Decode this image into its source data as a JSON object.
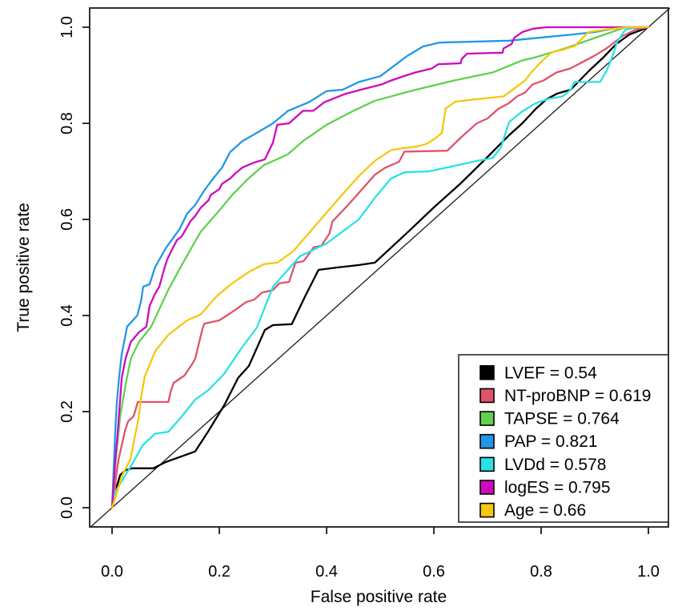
{
  "chart_data": {
    "type": "line",
    "subtype": "roc-curves",
    "xlabel": "False positive rate",
    "ylabel": "True positive rate",
    "xlim": [
      0,
      1
    ],
    "ylim": [
      0,
      1
    ],
    "axis_padding_frac": 0.04,
    "x_ticks": [
      "0.0",
      "0.2",
      "0.4",
      "0.6",
      "0.8",
      "1.0"
    ],
    "y_ticks": [
      "0.0",
      "0.2",
      "0.4",
      "0.6",
      "0.8",
      "1.0"
    ],
    "grid": false,
    "diagonal_reference_line": true,
    "legend_position": "bottom-right",
    "background_color": "#ffffff",
    "axis_color": "#1a1a1a",
    "series": [
      {
        "name": "LVEF",
        "auc": 0.54,
        "label": "LVEF = 0.54",
        "color": "#000000",
        "points": [
          [
            0,
            0
          ],
          [
            0.007,
            0.037
          ],
          [
            0.015,
            0.068
          ],
          [
            0.025,
            0.078
          ],
          [
            0.037,
            0.082
          ],
          [
            0.077,
            0.082
          ],
          [
            0.1,
            0.095
          ],
          [
            0.155,
            0.117
          ],
          [
            0.18,
            0.16
          ],
          [
            0.21,
            0.215
          ],
          [
            0.235,
            0.27
          ],
          [
            0.255,
            0.295
          ],
          [
            0.285,
            0.37
          ],
          [
            0.3,
            0.38
          ],
          [
            0.335,
            0.382
          ],
          [
            0.36,
            0.44
          ],
          [
            0.385,
            0.495
          ],
          [
            0.42,
            0.5
          ],
          [
            0.46,
            0.505
          ],
          [
            0.49,
            0.51
          ],
          [
            0.55,
            0.572
          ],
          [
            0.6,
            0.625
          ],
          [
            0.65,
            0.675
          ],
          [
            0.7,
            0.73
          ],
          [
            0.74,
            0.775
          ],
          [
            0.765,
            0.8
          ],
          [
            0.79,
            0.83
          ],
          [
            0.81,
            0.85
          ],
          [
            0.83,
            0.862
          ],
          [
            0.855,
            0.87
          ],
          [
            0.89,
            0.91
          ],
          [
            0.915,
            0.936
          ],
          [
            0.94,
            0.965
          ],
          [
            0.965,
            0.985
          ],
          [
            1,
            1
          ]
        ]
      },
      {
        "name": "NT-proBNP",
        "auc": 0.619,
        "label": "NT-proBNP = 0.619",
        "color": "#DF536B",
        "points": [
          [
            0,
            0
          ],
          [
            0.004,
            0.02
          ],
          [
            0.007,
            0.06
          ],
          [
            0.012,
            0.1
          ],
          [
            0.018,
            0.13
          ],
          [
            0.024,
            0.16
          ],
          [
            0.03,
            0.18
          ],
          [
            0.04,
            0.19
          ],
          [
            0.048,
            0.22
          ],
          [
            0.105,
            0.22
          ],
          [
            0.11,
            0.245
          ],
          [
            0.115,
            0.26
          ],
          [
            0.135,
            0.275
          ],
          [
            0.15,
            0.3
          ],
          [
            0.155,
            0.31
          ],
          [
            0.168,
            0.37
          ],
          [
            0.172,
            0.383
          ],
          [
            0.2,
            0.39
          ],
          [
            0.214,
            0.4
          ],
          [
            0.23,
            0.412
          ],
          [
            0.25,
            0.428
          ],
          [
            0.265,
            0.433
          ],
          [
            0.28,
            0.448
          ],
          [
            0.3,
            0.453
          ],
          [
            0.312,
            0.467
          ],
          [
            0.33,
            0.47
          ],
          [
            0.342,
            0.51
          ],
          [
            0.357,
            0.513
          ],
          [
            0.367,
            0.528
          ],
          [
            0.376,
            0.542
          ],
          [
            0.39,
            0.545
          ],
          [
            0.405,
            0.57
          ],
          [
            0.411,
            0.596
          ],
          [
            0.44,
            0.63
          ],
          [
            0.46,
            0.655
          ],
          [
            0.49,
            0.693
          ],
          [
            0.51,
            0.708
          ],
          [
            0.535,
            0.72
          ],
          [
            0.545,
            0.741
          ],
          [
            0.625,
            0.743
          ],
          [
            0.65,
            0.77
          ],
          [
            0.68,
            0.8
          ],
          [
            0.7,
            0.81
          ],
          [
            0.72,
            0.83
          ],
          [
            0.74,
            0.842
          ],
          [
            0.755,
            0.856
          ],
          [
            0.77,
            0.864
          ],
          [
            0.784,
            0.881
          ],
          [
            0.804,
            0.889
          ],
          [
            0.829,
            0.906
          ],
          [
            0.854,
            0.914
          ],
          [
            0.878,
            0.928
          ],
          [
            0.903,
            0.943
          ],
          [
            0.922,
            0.956
          ],
          [
            0.951,
            0.981
          ],
          [
            0.976,
            0.995
          ],
          [
            1,
            1
          ]
        ]
      },
      {
        "name": "TAPSE",
        "auc": 0.764,
        "label": "TAPSE = 0.764",
        "color": "#61D04F",
        "points": [
          [
            0,
            0
          ],
          [
            0.007,
            0.1
          ],
          [
            0.015,
            0.19
          ],
          [
            0.025,
            0.255
          ],
          [
            0.035,
            0.31
          ],
          [
            0.05,
            0.345
          ],
          [
            0.073,
            0.377
          ],
          [
            0.106,
            0.456
          ],
          [
            0.136,
            0.517
          ],
          [
            0.165,
            0.574
          ],
          [
            0.195,
            0.612
          ],
          [
            0.224,
            0.651
          ],
          [
            0.254,
            0.685
          ],
          [
            0.283,
            0.713
          ],
          [
            0.327,
            0.735
          ],
          [
            0.356,
            0.763
          ],
          [
            0.4,
            0.797
          ],
          [
            0.45,
            0.826
          ],
          [
            0.49,
            0.847
          ],
          [
            0.563,
            0.869
          ],
          [
            0.637,
            0.889
          ],
          [
            0.71,
            0.906
          ],
          [
            0.765,
            0.931
          ],
          [
            0.785,
            0.936
          ],
          [
            0.833,
            0.952
          ],
          [
            0.863,
            0.963
          ],
          [
            0.893,
            0.975
          ],
          [
            0.932,
            0.99
          ],
          [
            0.957,
            1
          ],
          [
            1,
            1
          ]
        ]
      },
      {
        "name": "PAP",
        "auc": 0.821,
        "label": "PAP = 0.821",
        "color": "#2297E6",
        "points": [
          [
            0,
            0
          ],
          [
            0.003,
            0.08
          ],
          [
            0.006,
            0.16
          ],
          [
            0.009,
            0.22
          ],
          [
            0.013,
            0.27
          ],
          [
            0.018,
            0.32
          ],
          [
            0.028,
            0.377
          ],
          [
            0.047,
            0.4
          ],
          [
            0.054,
            0.43
          ],
          [
            0.058,
            0.46
          ],
          [
            0.07,
            0.465
          ],
          [
            0.08,
            0.5
          ],
          [
            0.1,
            0.54
          ],
          [
            0.111,
            0.557
          ],
          [
            0.126,
            0.58
          ],
          [
            0.14,
            0.612
          ],
          [
            0.155,
            0.63
          ],
          [
            0.17,
            0.657
          ],
          [
            0.185,
            0.68
          ],
          [
            0.205,
            0.708
          ],
          [
            0.22,
            0.74
          ],
          [
            0.243,
            0.763
          ],
          [
            0.265,
            0.777
          ],
          [
            0.285,
            0.79
          ],
          [
            0.3,
            0.8
          ],
          [
            0.328,
            0.826
          ],
          [
            0.367,
            0.844
          ],
          [
            0.4,
            0.867
          ],
          [
            0.43,
            0.87
          ],
          [
            0.46,
            0.886
          ],
          [
            0.5,
            0.898
          ],
          [
            0.55,
            0.94
          ],
          [
            0.58,
            0.96
          ],
          [
            0.61,
            0.968
          ],
          [
            0.74,
            0.972
          ],
          [
            0.86,
            0.985
          ],
          [
            0.9,
            0.99
          ],
          [
            0.95,
            1
          ],
          [
            1,
            1
          ]
        ]
      },
      {
        "name": "LVDd",
        "auc": 0.578,
        "label": "LVDd = 0.578",
        "color": "#28E2E5",
        "points": [
          [
            0,
            0
          ],
          [
            0.005,
            0.03
          ],
          [
            0.015,
            0.05
          ],
          [
            0.037,
            0.09
          ],
          [
            0.057,
            0.13
          ],
          [
            0.08,
            0.154
          ],
          [
            0.105,
            0.158
          ],
          [
            0.13,
            0.19
          ],
          [
            0.155,
            0.225
          ],
          [
            0.18,
            0.245
          ],
          [
            0.21,
            0.28
          ],
          [
            0.24,
            0.33
          ],
          [
            0.27,
            0.375
          ],
          [
            0.3,
            0.46
          ],
          [
            0.35,
            0.523
          ],
          [
            0.4,
            0.55
          ],
          [
            0.46,
            0.6
          ],
          [
            0.49,
            0.645
          ],
          [
            0.52,
            0.685
          ],
          [
            0.545,
            0.698
          ],
          [
            0.59,
            0.7
          ],
          [
            0.633,
            0.71
          ],
          [
            0.677,
            0.721
          ],
          [
            0.71,
            0.728
          ],
          [
            0.725,
            0.75
          ],
          [
            0.74,
            0.802
          ],
          [
            0.765,
            0.825
          ],
          [
            0.79,
            0.842
          ],
          [
            0.814,
            0.851
          ],
          [
            0.84,
            0.856
          ],
          [
            0.855,
            0.87
          ],
          [
            0.862,
            0.886
          ],
          [
            0.91,
            0.886
          ],
          [
            0.922,
            0.909
          ],
          [
            0.932,
            0.936
          ],
          [
            0.942,
            0.97
          ],
          [
            0.957,
            0.995
          ],
          [
            0.98,
            1
          ],
          [
            1,
            1
          ]
        ]
      },
      {
        "name": "logES",
        "auc": 0.795,
        "label": "logES = 0.795",
        "color": "#CD0BBC",
        "points": [
          [
            0,
            0
          ],
          [
            0.003,
            0.05
          ],
          [
            0.006,
            0.1
          ],
          [
            0.01,
            0.15
          ],
          [
            0.014,
            0.21
          ],
          [
            0.018,
            0.27
          ],
          [
            0.025,
            0.31
          ],
          [
            0.035,
            0.345
          ],
          [
            0.05,
            0.365
          ],
          [
            0.064,
            0.377
          ],
          [
            0.07,
            0.42
          ],
          [
            0.08,
            0.445
          ],
          [
            0.088,
            0.46
          ],
          [
            0.098,
            0.5
          ],
          [
            0.103,
            0.517
          ],
          [
            0.114,
            0.542
          ],
          [
            0.121,
            0.557
          ],
          [
            0.13,
            0.565
          ],
          [
            0.14,
            0.584
          ],
          [
            0.146,
            0.596
          ],
          [
            0.155,
            0.607
          ],
          [
            0.165,
            0.624
          ],
          [
            0.18,
            0.64
          ],
          [
            0.184,
            0.651
          ],
          [
            0.2,
            0.663
          ],
          [
            0.205,
            0.674
          ],
          [
            0.22,
            0.685
          ],
          [
            0.23,
            0.696
          ],
          [
            0.243,
            0.708
          ],
          [
            0.264,
            0.718
          ],
          [
            0.285,
            0.725
          ],
          [
            0.3,
            0.76
          ],
          [
            0.308,
            0.797
          ],
          [
            0.33,
            0.8
          ],
          [
            0.356,
            0.826
          ],
          [
            0.375,
            0.826
          ],
          [
            0.396,
            0.844
          ],
          [
            0.434,
            0.861
          ],
          [
            0.464,
            0.87
          ],
          [
            0.503,
            0.881
          ],
          [
            0.52,
            0.889
          ],
          [
            0.549,
            0.9
          ],
          [
            0.566,
            0.906
          ],
          [
            0.596,
            0.914
          ],
          [
            0.608,
            0.923
          ],
          [
            0.65,
            0.925
          ],
          [
            0.652,
            0.934
          ],
          [
            0.662,
            0.945
          ],
          [
            0.728,
            0.947
          ],
          [
            0.73,
            0.956
          ],
          [
            0.745,
            0.965
          ],
          [
            0.75,
            0.978
          ],
          [
            0.765,
            0.99
          ],
          [
            0.785,
            0.997
          ],
          [
            0.81,
            1
          ],
          [
            1,
            1
          ]
        ]
      },
      {
        "name": "Age",
        "auc": 0.66,
        "label": "Age = 0.66",
        "color": "#F5C710",
        "points": [
          [
            0,
            0
          ],
          [
            0.02,
            0.07
          ],
          [
            0.034,
            0.1
          ],
          [
            0.042,
            0.145
          ],
          [
            0.05,
            0.19
          ],
          [
            0.054,
            0.23
          ],
          [
            0.061,
            0.273
          ],
          [
            0.081,
            0.327
          ],
          [
            0.106,
            0.361
          ],
          [
            0.14,
            0.39
          ],
          [
            0.165,
            0.402
          ],
          [
            0.195,
            0.44
          ],
          [
            0.224,
            0.467
          ],
          [
            0.254,
            0.49
          ],
          [
            0.283,
            0.507
          ],
          [
            0.308,
            0.51
          ],
          [
            0.338,
            0.534
          ],
          [
            0.362,
            0.565
          ],
          [
            0.386,
            0.596
          ],
          [
            0.42,
            0.64
          ],
          [
            0.46,
            0.69
          ],
          [
            0.49,
            0.722
          ],
          [
            0.52,
            0.744
          ],
          [
            0.54,
            0.748
          ],
          [
            0.57,
            0.752
          ],
          [
            0.588,
            0.758
          ],
          [
            0.603,
            0.769
          ],
          [
            0.615,
            0.78
          ],
          [
            0.622,
            0.831
          ],
          [
            0.64,
            0.845
          ],
          [
            0.662,
            0.848
          ],
          [
            0.73,
            0.856
          ],
          [
            0.77,
            0.889
          ],
          [
            0.784,
            0.909
          ],
          [
            0.8,
            0.928
          ],
          [
            0.82,
            0.948
          ],
          [
            0.84,
            0.953
          ],
          [
            0.863,
            0.961
          ],
          [
            0.888,
            0.99
          ],
          [
            0.92,
            0.995
          ],
          [
            0.96,
            1
          ],
          [
            1,
            1
          ]
        ]
      }
    ]
  }
}
